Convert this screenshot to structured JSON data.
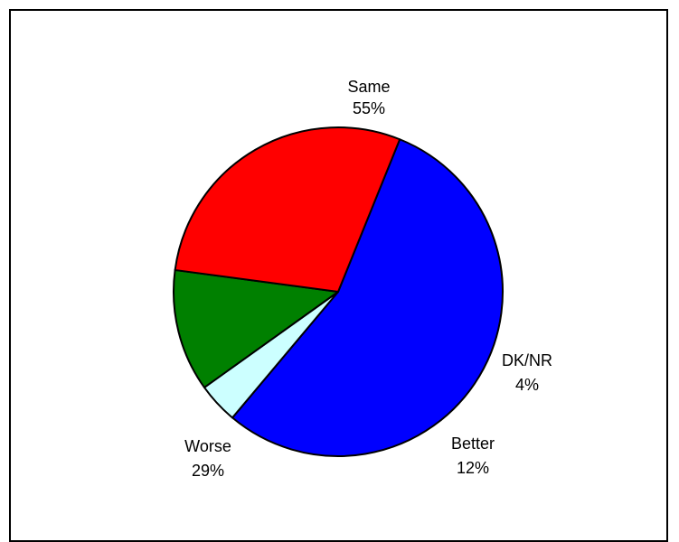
{
  "chart_data": {
    "type": "pie",
    "title": "",
    "slices": [
      {
        "label": "Same",
        "value": 55,
        "value_label": "55%",
        "color": "#0000FF"
      },
      {
        "label": "DK/NR",
        "value": 4,
        "value_label": "4%",
        "color": "#CCFFFF"
      },
      {
        "label": "Better",
        "value": 12,
        "value_label": "12%",
        "color": "#008000"
      },
      {
        "label": "Worse",
        "value": 29,
        "value_label": "29%",
        "color": "#FF0000"
      }
    ],
    "start_angle_deg": 22,
    "direction": "clockwise",
    "legend": "none"
  }
}
